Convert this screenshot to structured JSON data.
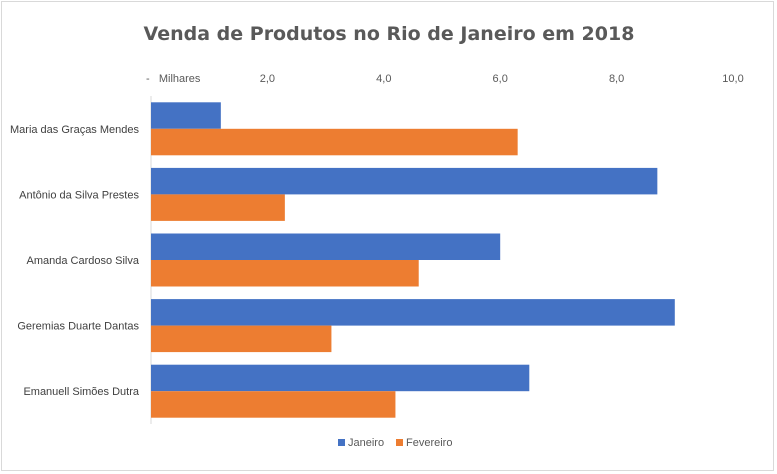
{
  "chart_data": {
    "type": "bar",
    "orientation": "horizontal",
    "title": "Venda de Produtos no Rio de Janeiro em 2018",
    "xlabel": "",
    "ylabel": "",
    "xlim": [
      0,
      10
    ],
    "x_tick_values": [
      0,
      2,
      4,
      6,
      8,
      10
    ],
    "x_tick_labels": [
      "-   Milhares",
      "2,0",
      "4,0",
      "6,0",
      "8,0",
      "10,0"
    ],
    "x_axis_position": "top",
    "grid": false,
    "legend_position": "bottom",
    "categories": [
      "Maria das Graças Mendes",
      "Antônio da Silva Prestes",
      "Amanda Cardoso Silva",
      "Geremias Duarte Dantas",
      "Emanuell Simões Dutra"
    ],
    "series": [
      {
        "name": "Janeiro",
        "color": "#4472c4",
        "values": [
          1.2,
          8.7,
          6.0,
          9.0,
          6.5
        ]
      },
      {
        "name": "Fevereiro",
        "color": "#ed7d31",
        "values": [
          6.3,
          2.3,
          4.6,
          3.1,
          4.2
        ]
      }
    ]
  }
}
